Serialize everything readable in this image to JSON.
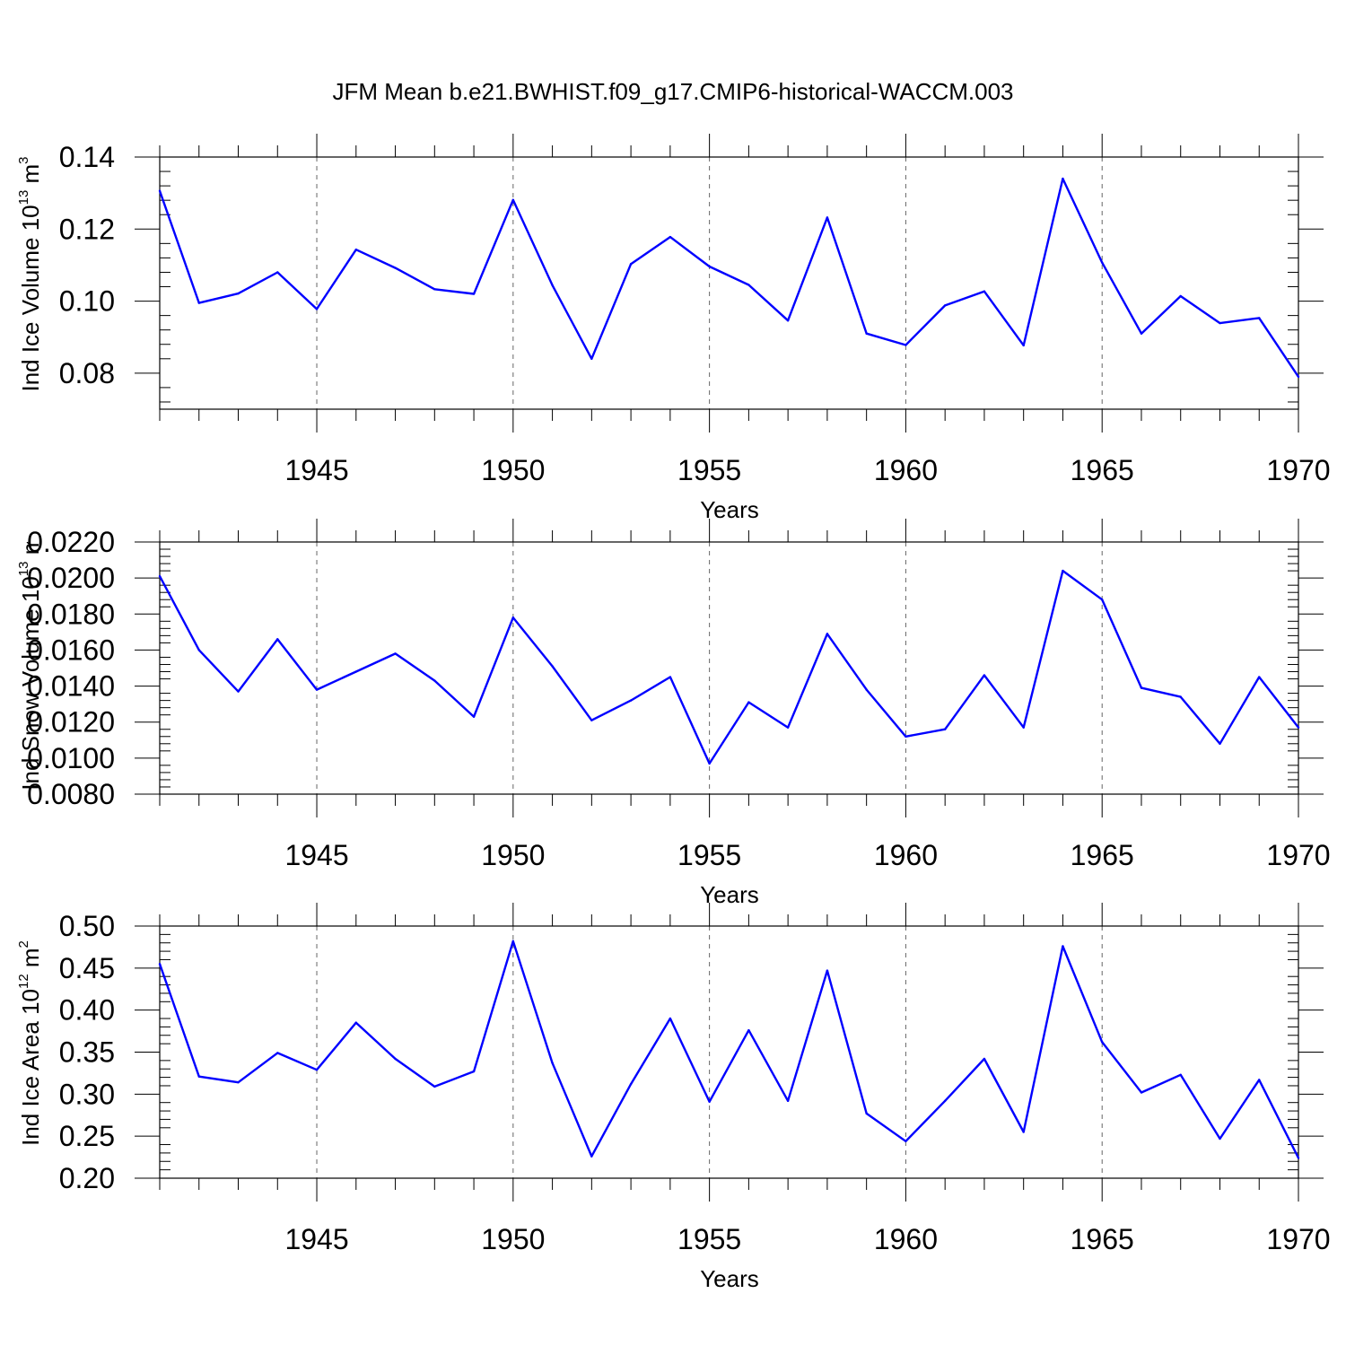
{
  "title": "JFM Mean b.e21.BWHIST.f09_g17.CMIP6-historical-WACCM.003",
  "colors": {
    "line": "#0000ff",
    "axes": "#000000",
    "grid": "#000000"
  },
  "chart_data": [
    {
      "type": "line",
      "ylabel_text": "Ind Ice Volume 10",
      "ylabel_exp": "13",
      "ylabel_unit": " m",
      "ylabel_unit_exp": "3",
      "xlabel": "Years",
      "xlim": [
        1941,
        1970
      ],
      "ylim": [
        0.07,
        0.14
      ],
      "yticks": [
        0.08,
        0.1,
        0.12,
        0.14
      ],
      "ytick_labels": [
        "0.08",
        "0.10",
        "0.12",
        "0.14"
      ],
      "xticks": [
        1945,
        1950,
        1955,
        1960,
        1965,
        1970
      ],
      "xtick_labels": [
        "1945",
        "1950",
        "1955",
        "1960",
        "1965",
        "1970"
      ],
      "grid": "vertical dashed at major x ticks",
      "x": [
        1941,
        1942,
        1943,
        1944,
        1945,
        1946,
        1947,
        1948,
        1949,
        1950,
        1951,
        1952,
        1953,
        1954,
        1955,
        1956,
        1957,
        1958,
        1959,
        1960,
        1961,
        1962,
        1963,
        1964,
        1965,
        1966,
        1967,
        1968,
        1969,
        1970
      ],
      "series": [
        {
          "values": [
            0.1306,
            0.0995,
            0.1021,
            0.108,
            0.0978,
            0.1143,
            0.1092,
            0.1033,
            0.102,
            0.1281,
            0.1044,
            0.084,
            0.1103,
            0.1178,
            0.1096,
            0.1045,
            0.0946,
            0.1232,
            0.091,
            0.0878,
            0.0988,
            0.1027,
            0.0877,
            0.134,
            0.1107,
            0.091,
            0.1014,
            0.0939,
            0.0953,
            0.079
          ]
        }
      ]
    },
    {
      "type": "line",
      "ylabel_text": "Ind Snow Volume 10",
      "ylabel_exp": "13",
      "ylabel_unit": " m",
      "ylabel_unit_exp": "3",
      "xlabel": "Years",
      "xlim": [
        1941,
        1970
      ],
      "ylim": [
        0.008,
        0.022
      ],
      "yticks": [
        0.008,
        0.01,
        0.012,
        0.014,
        0.016,
        0.018,
        0.02,
        0.022
      ],
      "ytick_labels": [
        "0.0080",
        "0.0100",
        "0.0120",
        "0.0140",
        "0.0160",
        "0.0180",
        "0.0200",
        "0.0220"
      ],
      "xticks": [
        1945,
        1950,
        1955,
        1960,
        1965,
        1970
      ],
      "xtick_labels": [
        "1945",
        "1950",
        "1955",
        "1960",
        "1965",
        "1970"
      ],
      "grid": "vertical dashed at major x ticks",
      "x": [
        1941,
        1942,
        1943,
        1944,
        1945,
        1946,
        1947,
        1948,
        1949,
        1950,
        1951,
        1952,
        1953,
        1954,
        1955,
        1956,
        1957,
        1958,
        1959,
        1960,
        1961,
        1962,
        1963,
        1964,
        1965,
        1966,
        1967,
        1968,
        1969,
        1970
      ],
      "series": [
        {
          "values": [
            0.0201,
            0.016,
            0.0137,
            0.0166,
            0.0138,
            0.0148,
            0.0158,
            0.0143,
            0.0123,
            0.0178,
            0.0151,
            0.0121,
            0.0132,
            0.0145,
            0.0097,
            0.0131,
            0.0117,
            0.0169,
            0.0138,
            0.0112,
            0.0116,
            0.0146,
            0.0117,
            0.0204,
            0.0188,
            0.0139,
            0.0134,
            0.0108,
            0.0145,
            0.0117
          ]
        }
      ]
    },
    {
      "type": "line",
      "ylabel_text": "Ind Ice Area 10",
      "ylabel_exp": "12",
      "ylabel_unit": " m",
      "ylabel_unit_exp": "2",
      "xlabel": "Years",
      "xlim": [
        1941,
        1970
      ],
      "ylim": [
        0.2,
        0.5
      ],
      "yticks": [
        0.2,
        0.25,
        0.3,
        0.35,
        0.4,
        0.45,
        0.5
      ],
      "ytick_labels": [
        "0.20",
        "0.25",
        "0.30",
        "0.35",
        "0.40",
        "0.45",
        "0.50"
      ],
      "xticks": [
        1945,
        1950,
        1955,
        1960,
        1965,
        1970
      ],
      "xtick_labels": [
        "1945",
        "1950",
        "1955",
        "1960",
        "1965",
        "1970"
      ],
      "grid": "vertical dashed at major x ticks",
      "x": [
        1941,
        1942,
        1943,
        1944,
        1945,
        1946,
        1947,
        1948,
        1949,
        1950,
        1951,
        1952,
        1953,
        1954,
        1955,
        1956,
        1957,
        1958,
        1959,
        1960,
        1961,
        1962,
        1963,
        1964,
        1965,
        1966,
        1967,
        1968,
        1969,
        1970
      ],
      "series": [
        {
          "values": [
            0.455,
            0.321,
            0.314,
            0.349,
            0.329,
            0.385,
            0.342,
            0.309,
            0.327,
            0.482,
            0.337,
            0.226,
            0.312,
            0.39,
            0.291,
            0.376,
            0.292,
            0.447,
            0.277,
            0.244,
            0.292,
            0.342,
            0.255,
            0.476,
            0.362,
            0.302,
            0.323,
            0.247,
            0.317,
            0.224
          ]
        }
      ]
    }
  ]
}
